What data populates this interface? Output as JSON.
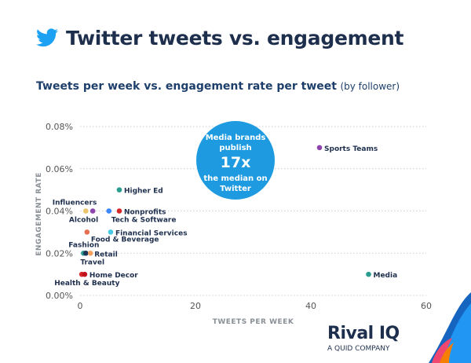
{
  "header": {
    "title": "Twitter tweets vs. engagement"
  },
  "subtitle": {
    "main": "Tweets per week vs. engagement rate per tweet",
    "note": "(by follower)"
  },
  "brand": {
    "name": "Rival IQ",
    "tagline": "A QUID COMPANY"
  },
  "colors": {
    "title": "#1e2f4d",
    "callout_bubble": "#1e9ae0",
    "twitter_blue": "#1da1f2"
  },
  "chart_data": {
    "type": "scatter",
    "xlabel": "TWEETS PER WEEK",
    "ylabel": "ENGAGEMENT RATE",
    "xlim": [
      0,
      60
    ],
    "ylim": [
      0,
      0.08
    ],
    "xticks": [
      0,
      20,
      40,
      60
    ],
    "yticks": [
      "0.00%",
      "0.02%",
      "0.04%",
      "0.06%",
      "0.08%"
    ],
    "grid": "horizontal dotted",
    "callout": {
      "lines": [
        "Media brands",
        "publish",
        "17x",
        "the median on",
        "Twitter"
      ]
    },
    "points": [
      {
        "label": "Sports Teams",
        "x": 41.5,
        "y": 0.07,
        "color": "#8e44ad"
      },
      {
        "label": "Higher Ed",
        "x": 6.8,
        "y": 0.05,
        "color": "#2a9d8f"
      },
      {
        "label": "Influencers",
        "x": 1.0,
        "y": 0.04,
        "color": "#e9c46a"
      },
      {
        "label": "Alcohol",
        "x": 2.2,
        "y": 0.04,
        "color": "#8e44ad"
      },
      {
        "label": "Tech & Software",
        "x": 5.0,
        "y": 0.04,
        "color": "#3a86ff"
      },
      {
        "label": "Nonprofits",
        "x": 6.8,
        "y": 0.04,
        "color": "#d62828"
      },
      {
        "label": "Food & Beverage",
        "x": 1.2,
        "y": 0.03,
        "color": "#e76f51"
      },
      {
        "label": "Financial Services",
        "x": 5.3,
        "y": 0.03,
        "color": "#48cae4"
      },
      {
        "label": "Fashion",
        "x": 0.6,
        "y": 0.02,
        "color": "#2a9d8f"
      },
      {
        "label": "Travel",
        "x": 1.0,
        "y": 0.02,
        "color": "#1d3557"
      },
      {
        "label": "Retail",
        "x": 1.8,
        "y": 0.02,
        "color": "#f4a261"
      },
      {
        "label": "Health & Beauty",
        "x": 0.3,
        "y": 0.01,
        "color": "#d62828"
      },
      {
        "label": "Home Decor",
        "x": 0.8,
        "y": 0.01,
        "color": "#c1121f"
      },
      {
        "label": "Media",
        "x": 50.0,
        "y": 0.01,
        "color": "#2a9d8f"
      }
    ]
  }
}
